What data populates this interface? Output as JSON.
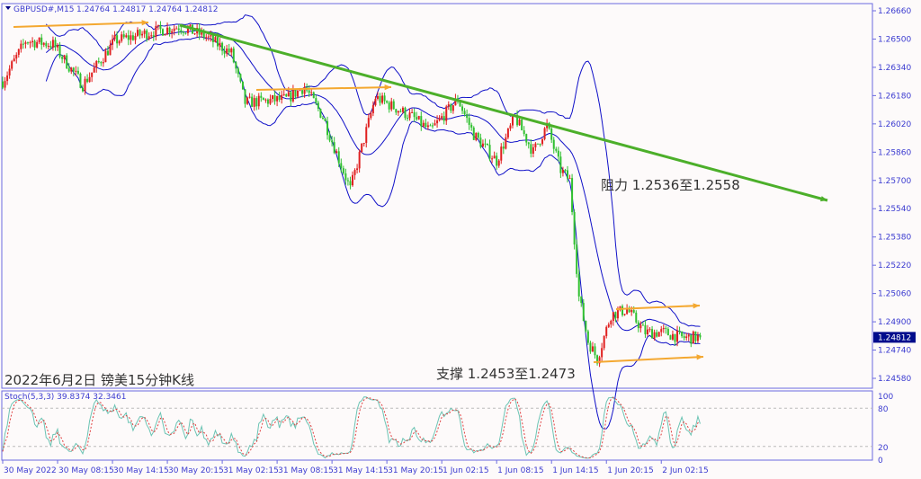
{
  "chart_data": {
    "type": "candlestick",
    "header": {
      "symbol": "GBPUSD#,M15",
      "ohlc": "1.24764 1.24817 1.24764 1.24812"
    },
    "title": "2022年6月2日 镑美15分钟K线",
    "ylim": [
      1.2458,
      1.2666
    ],
    "y_ticks": [
      "1.26660",
      "1.26500",
      "1.26340",
      "1.26180",
      "1.26020",
      "1.25860",
      "1.25700",
      "1.25540",
      "1.25380",
      "1.25220",
      "1.25060",
      "1.24900",
      "1.24740",
      "1.24580"
    ],
    "current_price": "1.24812",
    "x_ticks": [
      {
        "label": "30 May 2022",
        "t": "2022-05-30T02:15"
      },
      {
        "label": "30 May 08:15",
        "t": "2022-05-30T08:15"
      },
      {
        "label": "30 May 14:15",
        "t": "2022-05-30T14:15"
      },
      {
        "label": "30 May 20:15",
        "t": "2022-05-30T20:15"
      },
      {
        "label": "31 May 02:15",
        "t": "2022-05-31T02:15"
      },
      {
        "label": "31 May 08:15",
        "t": "2022-05-31T08:15"
      },
      {
        "label": "31 May 14:15",
        "t": "2022-05-31T14:15"
      },
      {
        "label": "31 May 20:15",
        "t": "2022-05-31T20:15"
      },
      {
        "label": "1 Jun 02:15",
        "t": "2022-06-01T02:15"
      },
      {
        "label": "1 Jun 08:15",
        "t": "2022-06-01T08:15"
      },
      {
        "label": "1 Jun 14:15",
        "t": "2022-06-01T14:15"
      },
      {
        "label": "1 Jun 20:15",
        "t": "2022-06-01T20:15"
      },
      {
        "label": "2 Jun 02:15",
        "t": "2022-06-02T02:15"
      }
    ],
    "price_path": [
      [
        "2022-05-30T02:15",
        1.2626
      ],
      [
        "2022-05-30T04:45",
        1.2649
      ],
      [
        "2022-05-30T07:45",
        1.2647
      ],
      [
        "2022-05-30T11:00",
        1.2624
      ],
      [
        "2022-05-30T14:30",
        1.2649
      ],
      [
        "2022-05-30T18:30",
        1.2654
      ],
      [
        "2022-05-30T21:30",
        1.2657
      ],
      [
        "2022-05-31T00:15",
        1.2652
      ],
      [
        "2022-05-31T03:15",
        1.2642
      ],
      [
        "2022-05-31T04:45",
        1.2614
      ],
      [
        "2022-05-31T09:15",
        1.2616
      ],
      [
        "2022-05-31T11:15",
        1.2623
      ],
      [
        "2022-05-31T13:15",
        1.2606
      ],
      [
        "2022-05-31T16:15",
        1.2565
      ],
      [
        "2022-05-31T19:00",
        1.2617
      ],
      [
        "2022-05-31T23:00",
        1.2606
      ],
      [
        "2022-06-01T01:00",
        1.2598
      ],
      [
        "2022-06-01T04:00",
        1.2616
      ],
      [
        "2022-06-01T05:45",
        1.2596
      ],
      [
        "2022-06-01T08:15",
        1.2581
      ],
      [
        "2022-06-01T10:15",
        1.2606
      ],
      [
        "2022-06-01T12:15",
        1.2586
      ],
      [
        "2022-06-01T13:45",
        1.2601
      ],
      [
        "2022-06-01T15:15",
        1.2576
      ],
      [
        "2022-06-01T16:15",
        1.257
      ],
      [
        "2022-06-01T17:15",
        1.2504
      ],
      [
        "2022-06-01T18:15",
        1.2479
      ],
      [
        "2022-06-01T19:15",
        1.2469
      ],
      [
        "2022-06-01T20:45",
        1.2494
      ],
      [
        "2022-06-01T22:30",
        1.2497
      ],
      [
        "2022-06-02T00:30",
        1.2484
      ],
      [
        "2022-06-02T02:30",
        1.2484
      ],
      [
        "2022-06-02T04:30",
        1.2481
      ],
      [
        "2022-06-02T06:30",
        1.24812
      ]
    ],
    "indicators": {
      "bollinger_bands": {
        "color": "#1010c8"
      },
      "stochastic": {
        "label": "Stoch(5,3,3) 39.8374 32.3461",
        "levels": [
          80,
          20
        ],
        "axis_ticks": [
          "100",
          "80",
          "20",
          "0"
        ],
        "main_color": "#6cc4b4",
        "signal_color": "#e04040"
      }
    },
    "annotations": {
      "resistance": "阻力 1.2536至1.2558",
      "support": "支撑 1.2453至1.2473",
      "trendline_color": "#4caf2a",
      "arrow_color": "#f4a830"
    },
    "colors": {
      "up": "#e02020",
      "down": "#30c030",
      "axis": "#3b3bd0",
      "price_box": "#000c8c"
    }
  }
}
